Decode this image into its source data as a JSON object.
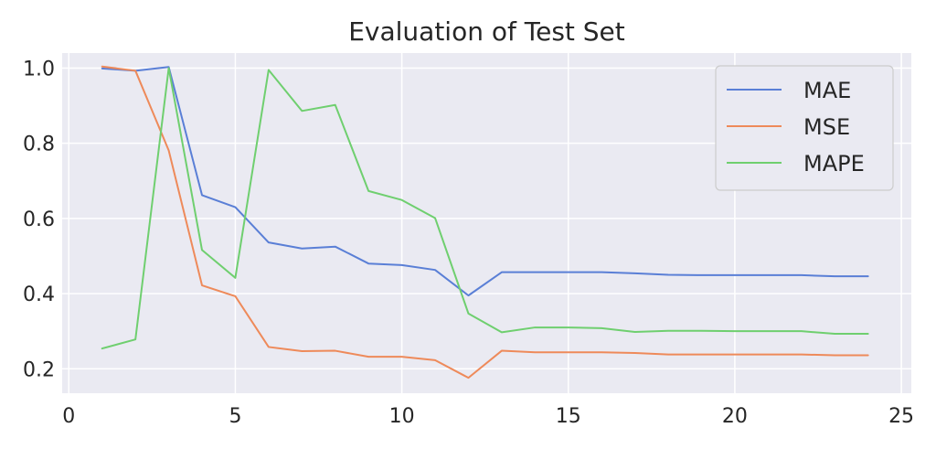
{
  "chart_data": {
    "type": "line",
    "title": "Evaluation of Test Set",
    "xlabel": "",
    "ylabel": "",
    "xlim": [
      -0.2,
      25.3
    ],
    "ylim": [
      0.135,
      1.04
    ],
    "xticks": [
      0,
      5,
      10,
      15,
      20,
      25
    ],
    "xtick_labels": [
      "0",
      "5",
      "10",
      "15",
      "20",
      "25"
    ],
    "yticks": [
      0.2,
      0.4,
      0.6,
      0.8,
      1.0
    ],
    "ytick_labels": [
      "0.2",
      "0.4",
      "0.6",
      "0.8",
      "1.0"
    ],
    "grid": true,
    "legend_position": "upper right",
    "x": [
      1,
      2,
      3,
      4,
      5,
      6,
      7,
      8,
      9,
      10,
      11,
      12,
      13,
      14,
      15,
      16,
      17,
      18,
      19,
      20,
      21,
      22,
      23,
      24
    ],
    "series": [
      {
        "name": "MAE",
        "color": "#5a7fd6",
        "values": [
          0.999,
          0.993,
          1.003,
          0.662,
          0.63,
          0.536,
          0.52,
          0.525,
          0.48,
          0.476,
          0.463,
          0.395,
          0.457,
          0.457,
          0.457,
          0.457,
          0.454,
          0.45,
          0.449,
          0.449,
          0.449,
          0.449,
          0.446,
          0.446
        ]
      },
      {
        "name": "MSE",
        "color": "#ee8a5a",
        "values": [
          1.004,
          0.993,
          0.781,
          0.422,
          0.393,
          0.258,
          0.247,
          0.248,
          0.232,
          0.232,
          0.223,
          0.176,
          0.248,
          0.244,
          0.244,
          0.244,
          0.242,
          0.238,
          0.238,
          0.238,
          0.238,
          0.238,
          0.236,
          0.236
        ]
      },
      {
        "name": "MAPE",
        "color": "#6fcf6f",
        "values": [
          0.254,
          0.278,
          1.0,
          0.516,
          0.442,
          0.995,
          0.886,
          0.902,
          0.673,
          0.649,
          0.601,
          0.347,
          0.297,
          0.31,
          0.31,
          0.308,
          0.298,
          0.301,
          0.301,
          0.3,
          0.3,
          0.3,
          0.293,
          0.293
        ]
      }
    ]
  }
}
